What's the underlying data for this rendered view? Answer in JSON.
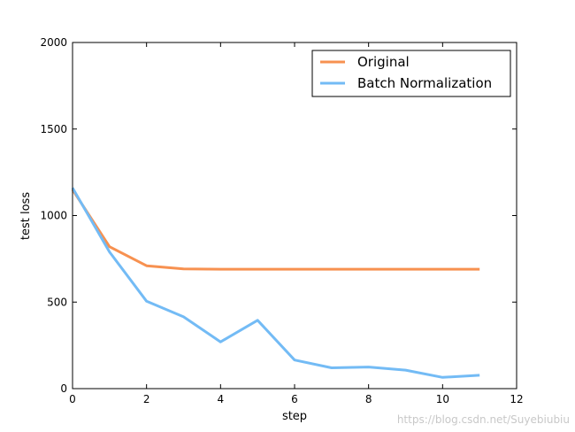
{
  "chart_data": {
    "type": "line",
    "title": "",
    "xlabel": "step",
    "ylabel": "test loss",
    "xlim": [
      0,
      12
    ],
    "ylim": [
      0,
      2000
    ],
    "xticks": [
      0,
      2,
      4,
      6,
      8,
      10,
      12
    ],
    "yticks": [
      0,
      500,
      1000,
      1500,
      2000
    ],
    "grid": false,
    "legend_position": "top-right",
    "series": [
      {
        "name": "Original",
        "color": "#f79150",
        "x": [
          0,
          1,
          2,
          3,
          4,
          5,
          6,
          7,
          8,
          9,
          10,
          11
        ],
        "y": [
          1150,
          820,
          710,
          692,
          690,
          690,
          690,
          690,
          690,
          690,
          690,
          690
        ]
      },
      {
        "name": "Batch Normalization",
        "color": "#73bbf5",
        "x": [
          0,
          1,
          2,
          3,
          4,
          5,
          6,
          7,
          8,
          9,
          10,
          11
        ],
        "y": [
          1160,
          790,
          505,
          415,
          270,
          395,
          165,
          120,
          125,
          107,
          65,
          77
        ]
      }
    ]
  },
  "watermark": "https://blog.csdn.net/Suyebiubiu"
}
